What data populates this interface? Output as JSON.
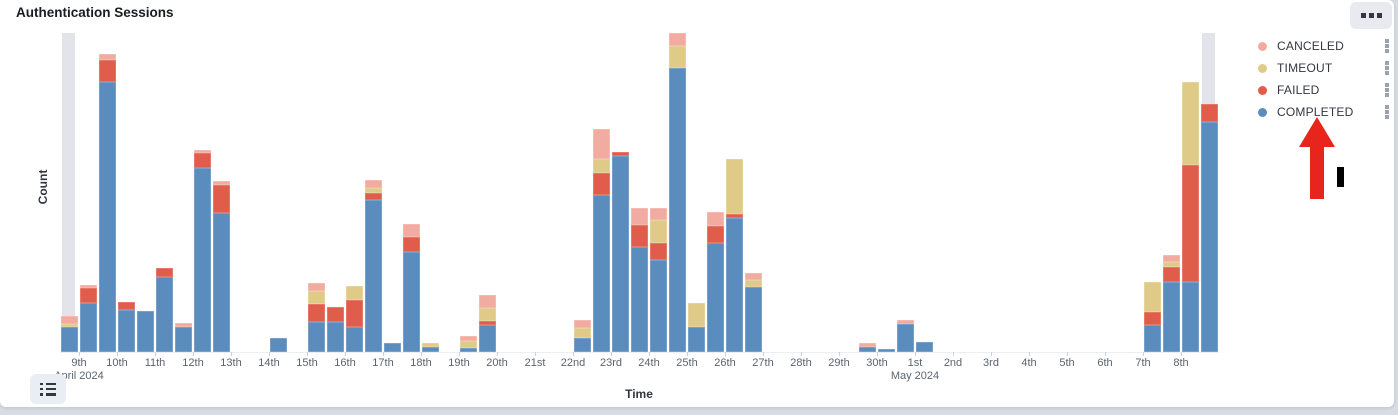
{
  "header": {
    "title": "Authentication Sessions"
  },
  "toolbar": {
    "options_button_icon": "boxes-horizontal-icon",
    "legend_toggle_icon": "list-icon"
  },
  "legend": {
    "position": "right",
    "items": [
      {
        "label": "CANCELED",
        "color": "#f2aba0",
        "grip_icon": "boxes-vertical-icon"
      },
      {
        "label": "TIMEOUT",
        "color": "#dfca87",
        "grip_icon": "boxes-vertical-icon"
      },
      {
        "label": "FAILED",
        "color": "#e05c4b",
        "grip_icon": "boxes-vertical-icon"
      },
      {
        "label": "COMPLETED",
        "color": "#5a8dbe",
        "grip_icon": "boxes-vertical-icon"
      }
    ]
  },
  "annotations": {
    "arrow_color": "#e8251d",
    "arrow_description": "red arrow pointing up at COMPLETED legend item",
    "cursor_color": "#000000",
    "cursor_description": "black vertical I-bar mark right of the arrow"
  },
  "chart_data": {
    "type": "bar",
    "subtype": "stacked-histogram",
    "title": "Authentication Sessions",
    "xlabel": "Time",
    "ylabel": "Count",
    "grid": false,
    "y_axis_numeric_labels_visible": false,
    "y_unit": "relative count (pixel-proportional, no numeric ticks shown)",
    "ylim": [
      0,
      319
    ],
    "x_axis": {
      "start": "April 8 2024 12:00",
      "end": "May 8 2024 24:00",
      "bucket_interval": "12h",
      "slots": 61
    },
    "stack_order_bottom_to_top": [
      "completed",
      "failed",
      "timeout",
      "canceled"
    ],
    "colors": {
      "completed": "#5a8dbe",
      "failed": "#e05c4b",
      "timeout": "#dfca87",
      "canceled": "#f2aba0",
      "partial_band": "#e3e4ea"
    },
    "partial_bucket_slots": [
      0,
      60
    ],
    "x_ticks": [
      {
        "label": "9th",
        "slot": 1,
        "caption": "April 2024"
      },
      {
        "label": "10th",
        "slot": 3
      },
      {
        "label": "11th",
        "slot": 5
      },
      {
        "label": "12th",
        "slot": 7
      },
      {
        "label": "13th",
        "slot": 9
      },
      {
        "label": "14th",
        "slot": 11
      },
      {
        "label": "15th",
        "slot": 13
      },
      {
        "label": "16th",
        "slot": 15
      },
      {
        "label": "17th",
        "slot": 17
      },
      {
        "label": "18th",
        "slot": 19
      },
      {
        "label": "19th",
        "slot": 21
      },
      {
        "label": "20th",
        "slot": 23
      },
      {
        "label": "21st",
        "slot": 25
      },
      {
        "label": "22nd",
        "slot": 27
      },
      {
        "label": "23rd",
        "slot": 29
      },
      {
        "label": "24th",
        "slot": 31
      },
      {
        "label": "25th",
        "slot": 33
      },
      {
        "label": "26th",
        "slot": 35
      },
      {
        "label": "27th",
        "slot": 37
      },
      {
        "label": "28th",
        "slot": 39
      },
      {
        "label": "29th",
        "slot": 41
      },
      {
        "label": "30th",
        "slot": 43
      },
      {
        "label": "1st",
        "slot": 45,
        "caption": "May 2024"
      },
      {
        "label": "2nd",
        "slot": 47
      },
      {
        "label": "3rd",
        "slot": 49
      },
      {
        "label": "4th",
        "slot": 51
      },
      {
        "label": "5th",
        "slot": 53
      },
      {
        "label": "6th",
        "slot": 55
      },
      {
        "label": "7th",
        "slot": 57
      },
      {
        "label": "8th",
        "slot": 59
      }
    ],
    "bars": [
      {
        "slot": 0,
        "date": "Apr 8 PM",
        "completed": 25,
        "failed": 0,
        "timeout": 3,
        "canceled": 8,
        "partial": true
      },
      {
        "slot": 1,
        "date": "Apr 9 AM",
        "completed": 49,
        "failed": 15,
        "timeout": 0,
        "canceled": 3
      },
      {
        "slot": 2,
        "date": "Apr 9 PM",
        "completed": 270,
        "failed": 22,
        "timeout": 0,
        "canceled": 6
      },
      {
        "slot": 3,
        "date": "Apr 10 AM",
        "completed": 42,
        "failed": 8,
        "timeout": 0,
        "canceled": 0
      },
      {
        "slot": 4,
        "date": "Apr 10 PM",
        "completed": 41,
        "failed": 0,
        "timeout": 0,
        "canceled": 0
      },
      {
        "slot": 5,
        "date": "Apr 11 AM",
        "completed": 75,
        "failed": 9,
        "timeout": 0,
        "canceled": 0
      },
      {
        "slot": 6,
        "date": "Apr 11 PM",
        "completed": 25,
        "failed": 0,
        "timeout": 0,
        "canceled": 4
      },
      {
        "slot": 7,
        "date": "Apr 12 AM",
        "completed": 184,
        "failed": 15,
        "timeout": 0,
        "canceled": 3
      },
      {
        "slot": 8,
        "date": "Apr 12 PM",
        "completed": 139,
        "failed": 28,
        "timeout": 0,
        "canceled": 4
      },
      {
        "slot": 11,
        "date": "Apr 14 AM",
        "completed": 14,
        "failed": 0,
        "timeout": 0,
        "canceled": 0
      },
      {
        "slot": 13,
        "date": "Apr 15 AM",
        "completed": 30,
        "failed": 18,
        "timeout": 13,
        "canceled": 8
      },
      {
        "slot": 14,
        "date": "Apr 15 PM",
        "completed": 30,
        "failed": 15,
        "timeout": 0,
        "canceled": 0
      },
      {
        "slot": 15,
        "date": "Apr 16 AM",
        "completed": 25,
        "failed": 27,
        "timeout": 14,
        "canceled": 0
      },
      {
        "slot": 16,
        "date": "Apr 16 PM",
        "completed": 152,
        "failed": 7,
        "timeout": 5,
        "canceled": 8
      },
      {
        "slot": 17,
        "date": "Apr 17 AM",
        "completed": 9,
        "failed": 0,
        "timeout": 0,
        "canceled": 0
      },
      {
        "slot": 18,
        "date": "Apr 17 PM",
        "completed": 100,
        "failed": 15,
        "timeout": 0,
        "canceled": 13
      },
      {
        "slot": 19,
        "date": "Apr 18 AM",
        "completed": 5,
        "failed": 0,
        "timeout": 4,
        "canceled": 0
      },
      {
        "slot": 21,
        "date": "Apr 19 AM",
        "completed": 4,
        "failed": 0,
        "timeout": 7,
        "canceled": 5
      },
      {
        "slot": 22,
        "date": "Apr 19 PM",
        "completed": 27,
        "failed": 4,
        "timeout": 13,
        "canceled": 13
      },
      {
        "slot": 27,
        "date": "Apr 22 AM",
        "completed": 14,
        "failed": 0,
        "timeout": 10,
        "canceled": 8
      },
      {
        "slot": 28,
        "date": "Apr 22 PM",
        "completed": 157,
        "failed": 22,
        "timeout": 14,
        "canceled": 30
      },
      {
        "slot": 29,
        "date": "Apr 23 AM",
        "completed": 196,
        "failed": 4,
        "timeout": 0,
        "canceled": 0
      },
      {
        "slot": 30,
        "date": "Apr 23 PM",
        "completed": 105,
        "failed": 22,
        "timeout": 0,
        "canceled": 17
      },
      {
        "slot": 31,
        "date": "Apr 24 AM",
        "completed": 92,
        "failed": 17,
        "timeout": 23,
        "canceled": 12
      },
      {
        "slot": 32,
        "date": "Apr 24 PM",
        "completed": 284,
        "failed": 0,
        "timeout": 22,
        "canceled": 13
      },
      {
        "slot": 33,
        "date": "Apr 25 AM",
        "completed": 25,
        "failed": 0,
        "timeout": 24,
        "canceled": 0
      },
      {
        "slot": 34,
        "date": "Apr 25 PM",
        "completed": 109,
        "failed": 17,
        "timeout": 0,
        "canceled": 14
      },
      {
        "slot": 35,
        "date": "Apr 26 AM",
        "completed": 134,
        "failed": 4,
        "timeout": 55,
        "canceled": 0
      },
      {
        "slot": 36,
        "date": "Apr 26 PM",
        "completed": 65,
        "failed": 0,
        "timeout": 7,
        "canceled": 7
      },
      {
        "slot": 42,
        "date": "Apr 29 PM",
        "completed": 5,
        "failed": 0,
        "timeout": 0,
        "canceled": 4
      },
      {
        "slot": 43,
        "date": "Apr 30 AM",
        "completed": 3,
        "failed": 0,
        "timeout": 0,
        "canceled": 0
      },
      {
        "slot": 44,
        "date": "Apr 30 PM",
        "completed": 28,
        "failed": 0,
        "timeout": 0,
        "canceled": 4
      },
      {
        "slot": 45,
        "date": "May 1 AM",
        "completed": 10,
        "failed": 0,
        "timeout": 0,
        "canceled": 0
      },
      {
        "slot": 57,
        "date": "May 7 AM",
        "completed": 27,
        "failed": 13,
        "timeout": 30,
        "canceled": 0
      },
      {
        "slot": 58,
        "date": "May 7 PM",
        "completed": 70,
        "failed": 15,
        "timeout": 5,
        "canceled": 7
      },
      {
        "slot": 59,
        "date": "May 8 AM",
        "completed": 70,
        "failed": 117,
        "timeout": 83,
        "canceled": 0
      },
      {
        "slot": 60,
        "date": "May 8 PM",
        "completed": 230,
        "failed": 18,
        "timeout": 0,
        "canceled": 0,
        "partial": true
      }
    ]
  }
}
